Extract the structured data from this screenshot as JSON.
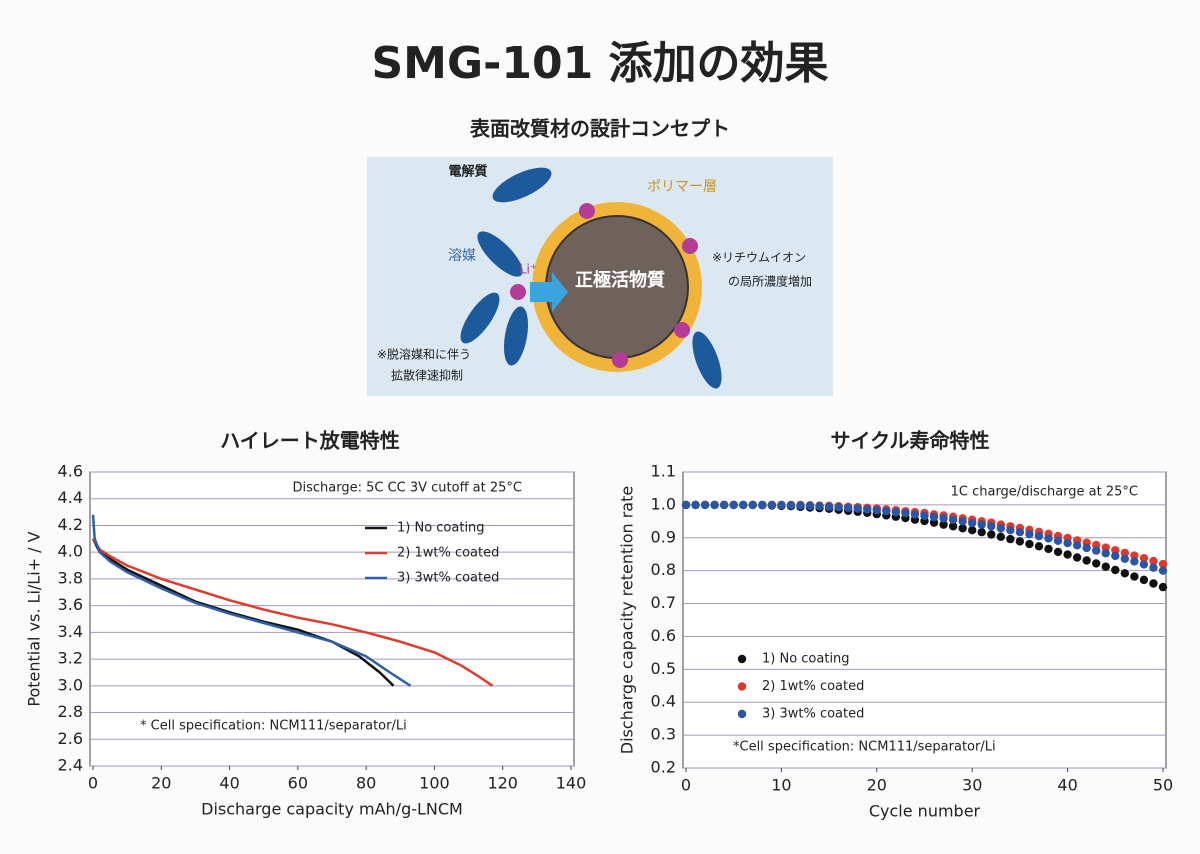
{
  "header": {
    "title": "SMG-101 添加の効果",
    "subtitle": "表面改質材の設計コンセプト"
  },
  "diagram": {
    "electrolyte": "電解質",
    "polymer_layer": "ポリマー層",
    "solvent": "溶媒",
    "ion": "Li⁺",
    "core": "正極活物質",
    "note_right": [
      "※リチウムイオン",
      "の局所濃度増加"
    ],
    "note_left": [
      "※脱溶媒和に伴う",
      "拡散律速抑制"
    ]
  },
  "chart_data": [
    {
      "type": "line",
      "title": "ハイレート放電特性",
      "annotation": "Discharge: 5C CC 3V cutoff at 25°C",
      "note": "* Cell specification: NCM111/separator/Li",
      "x_label": "Discharge capacity mAh/g-LNCM",
      "y_label": "Potential vs. Li/Li+ / V",
      "grid": true,
      "xlim": [
        0,
        140
      ],
      "xticks": [
        0,
        20,
        40,
        60,
        80,
        100,
        120,
        140
      ],
      "ylim": [
        2.4,
        4.6
      ],
      "yticks": [
        2.4,
        2.6,
        2.8,
        {
          "value": 3,
          "label": "3.0"
        },
        3.2,
        3.4,
        3.6,
        3.8,
        {
          "value": 4,
          "label": "4.0"
        },
        4.2,
        4.4,
        4.6
      ],
      "series": [
        {
          "name": "1) No coating",
          "color": "#111111",
          "x": [
            0,
            2,
            5,
            10,
            20,
            30,
            40,
            50,
            60,
            70,
            78,
            84,
            88
          ],
          "values": [
            4.1,
            4.0,
            3.95,
            3.87,
            3.75,
            3.63,
            3.55,
            3.48,
            3.42,
            3.33,
            3.22,
            3.1,
            3.0
          ]
        },
        {
          "name": "2) 1wt% coated",
          "color": "#e03a2a",
          "x": [
            0,
            2,
            5,
            10,
            20,
            30,
            40,
            50,
            60,
            70,
            80,
            90,
            100,
            108,
            113,
            117
          ],
          "values": [
            4.1,
            4.02,
            3.97,
            3.9,
            3.8,
            3.72,
            3.64,
            3.57,
            3.51,
            3.46,
            3.4,
            3.33,
            3.25,
            3.15,
            3.07,
            3.0
          ]
        },
        {
          "name": "3) 3wt% coated",
          "color": "#2f5fa8",
          "x": [
            0,
            0.5,
            2,
            5,
            10,
            20,
            30,
            40,
            50,
            60,
            70,
            80,
            87,
            93
          ],
          "values": [
            4.28,
            4.1,
            4.0,
            3.93,
            3.85,
            3.73,
            3.62,
            3.54,
            3.47,
            3.4,
            3.33,
            3.22,
            3.1,
            3.0
          ]
        }
      ]
    },
    {
      "type": "scatter",
      "title": "サイクル寿命特性",
      "annotation": "1C charge/discharge at 25°C",
      "note": "*Cell specification: NCM111/separator/Li",
      "x_label": "Cycle number",
      "y_label": "Discharge capacity retention rate",
      "grid": true,
      "xlim": [
        0,
        50
      ],
      "xticks": [
        0,
        10,
        20,
        30,
        40,
        50
      ],
      "ylim": [
        0.2,
        1.1
      ],
      "yticks": [
        0.2,
        0.3,
        0.4,
        0.5,
        0.6,
        0.7,
        0.8,
        0.9,
        {
          "value": 1,
          "label": "1.0"
        },
        1.1
      ],
      "x": [
        0,
        1,
        2,
        3,
        4,
        5,
        6,
        7,
        8,
        9,
        10,
        11,
        12,
        13,
        14,
        15,
        16,
        17,
        18,
        19,
        20,
        21,
        22,
        23,
        24,
        25,
        26,
        27,
        28,
        29,
        30,
        31,
        32,
        33,
        34,
        35,
        36,
        37,
        38,
        39,
        40,
        41,
        42,
        43,
        44,
        45,
        46,
        47,
        48,
        49,
        50
      ],
      "series": [
        {
          "name": "1) No coating",
          "color": "#111111",
          "values": [
            1,
            1,
            1,
            1,
            1,
            1,
            1,
            1,
            0.999,
            0.998,
            0.997,
            0.996,
            0.994,
            0.992,
            0.99,
            0.988,
            0.985,
            0.982,
            0.979,
            0.976,
            0.972,
            0.968,
            0.964,
            0.96,
            0.955,
            0.951,
            0.946,
            0.94,
            0.935,
            0.929,
            0.923,
            0.917,
            0.91,
            0.903,
            0.896,
            0.889,
            0.881,
            0.874,
            0.866,
            0.857,
            0.849,
            0.84,
            0.831,
            0.822,
            0.812,
            0.802,
            0.792,
            0.782,
            0.772,
            0.761,
            0.75
          ]
        },
        {
          "name": "2) 1wt% coated",
          "color": "#e0392b",
          "values": [
            1,
            1,
            1,
            1,
            1,
            1,
            1,
            1,
            1,
            1,
            1,
            1,
            1,
            0.999,
            0.998,
            0.997,
            0.996,
            0.994,
            0.993,
            0.991,
            0.989,
            0.986,
            0.984,
            0.981,
            0.978,
            0.975,
            0.971,
            0.968,
            0.964,
            0.959,
            0.955,
            0.95,
            0.946,
            0.94,
            0.935,
            0.93,
            0.924,
            0.918,
            0.912,
            0.905,
            0.899,
            0.892,
            0.885,
            0.878,
            0.87,
            0.862,
            0.854,
            0.846,
            0.838,
            0.829,
            0.82
          ]
        },
        {
          "name": "3) 3wt% coated",
          "color": "#2a56a6",
          "values": [
            1,
            1,
            1,
            1,
            1,
            1,
            1,
            1,
            1,
            1,
            1,
            0.999,
            0.998,
            0.997,
            0.996,
            0.994,
            0.993,
            0.991,
            0.989,
            0.986,
            0.984,
            0.981,
            0.978,
            0.975,
            0.971,
            0.967,
            0.963,
            0.959,
            0.955,
            0.95,
            0.945,
            0.94,
            0.935,
            0.929,
            0.923,
            0.917,
            0.911,
            0.905,
            0.898,
            0.891,
            0.884,
            0.877,
            0.869,
            0.861,
            0.853,
            0.845,
            0.836,
            0.828,
            0.819,
            0.809,
            0.8
          ]
        }
      ]
    }
  ]
}
